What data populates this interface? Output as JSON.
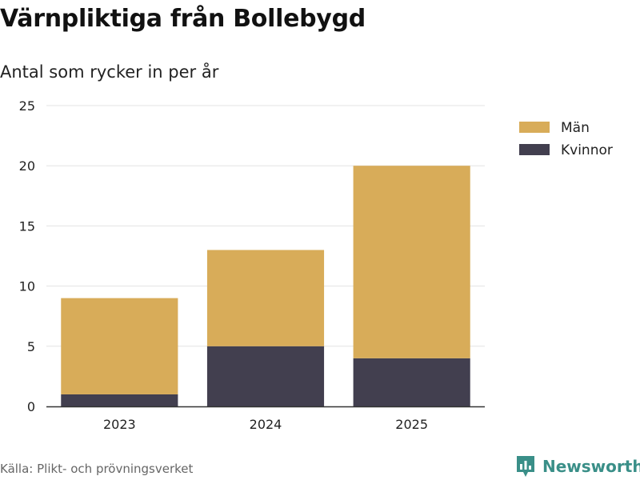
{
  "chart_data": {
    "type": "bar",
    "stacked": true,
    "title": "Värnpliktiga från Bollebygd",
    "subtitle": "Antal som rycker in per år",
    "categories": [
      "2023",
      "2024",
      "2025"
    ],
    "series": [
      {
        "name": "Kvinnor",
        "values": [
          1,
          5,
          4
        ],
        "color": "#423f4f"
      },
      {
        "name": "Män",
        "values": [
          8,
          8,
          16
        ],
        "color": "#d8ac59"
      }
    ],
    "legend_order": [
      "Män",
      "Kvinnor"
    ],
    "legend_position": "top-right",
    "ylim": [
      0,
      25
    ],
    "yticks": [
      "0",
      "5",
      "10",
      "15",
      "20",
      "25"
    ],
    "grid": true,
    "xlabel": "",
    "ylabel": ""
  },
  "footer": {
    "source": "Källa: Plikt- och prövningsverket",
    "brand": "Newsworthy"
  },
  "colors": {
    "brand": "#3a8f88",
    "grid": "#e3e3e3",
    "axis": "#333333"
  }
}
